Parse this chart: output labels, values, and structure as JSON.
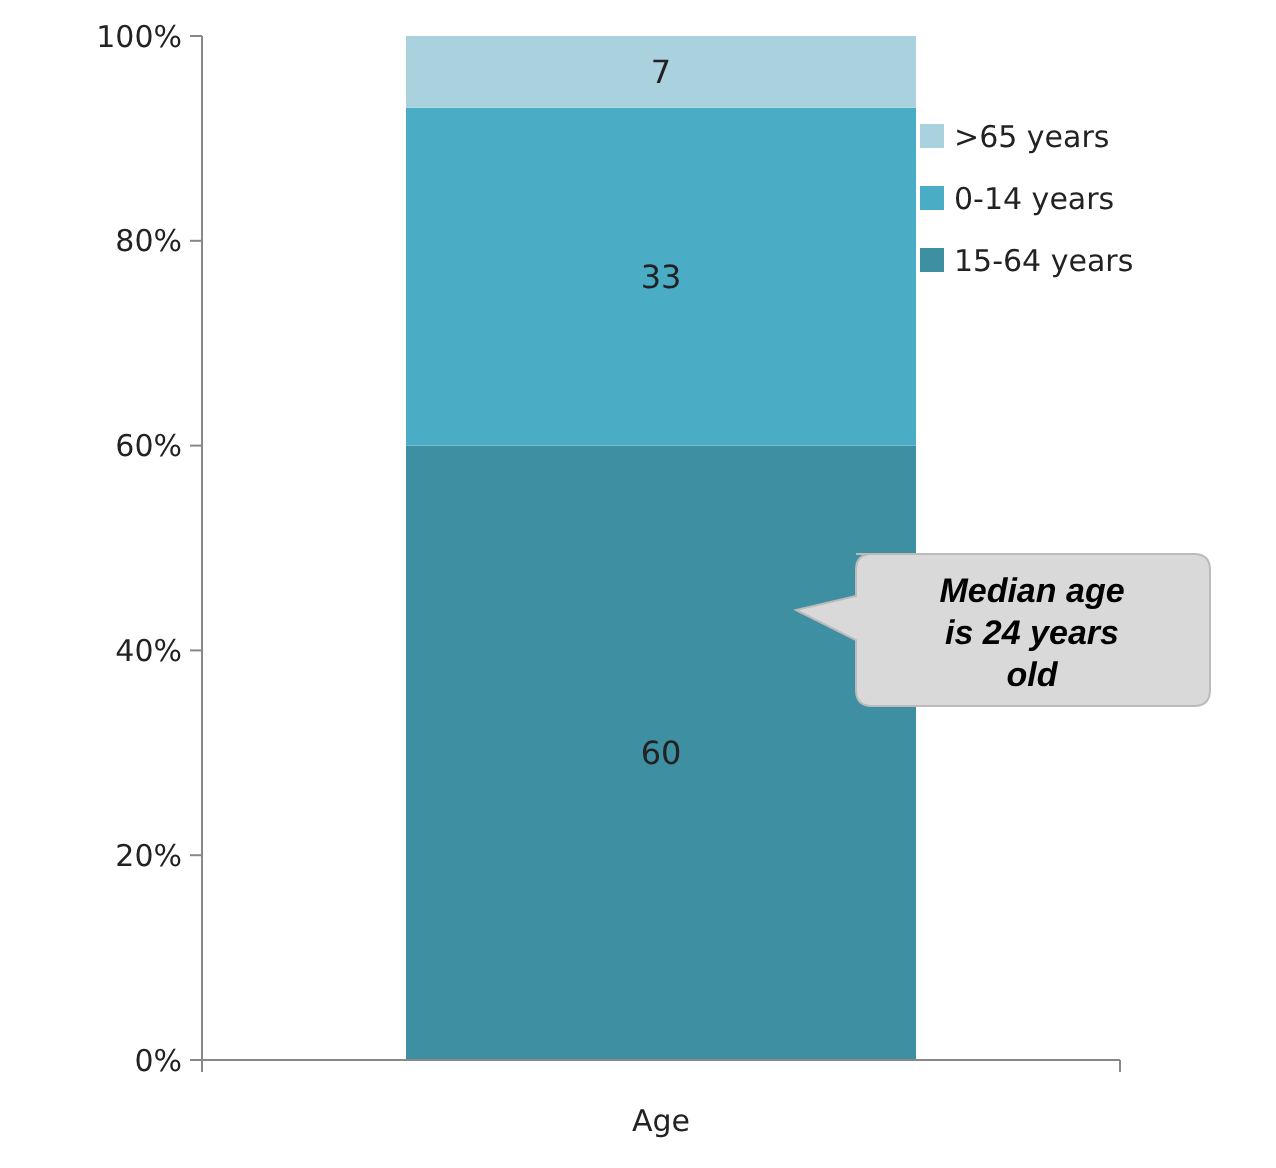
{
  "chart_data": {
    "type": "bar",
    "stacked": true,
    "categories": [
      "Age"
    ],
    "series": [
      {
        "name": "15-64 years",
        "color": "#3f8fa3",
        "values": [
          60
        ]
      },
      {
        "name": "0-14 years",
        "color": "#4bacc6",
        "values": [
          33
        ]
      },
      {
        "name": ">65 years",
        "color": "#a9d2de",
        "values": [
          7
        ]
      }
    ],
    "ylim": [
      0,
      100
    ],
    "yticks": [
      {
        "value": 0,
        "label": "0%"
      },
      {
        "value": 20,
        "label": "20%"
      },
      {
        "value": 40,
        "label": "40%"
      },
      {
        "value": 60,
        "label": "60%"
      },
      {
        "value": 80,
        "label": "80%"
      },
      {
        "value": 100,
        "label": "100%"
      }
    ],
    "data_labels": true,
    "legend": "right",
    "grid": false,
    "annotations": [
      "Median age is 24 years old"
    ]
  }
}
